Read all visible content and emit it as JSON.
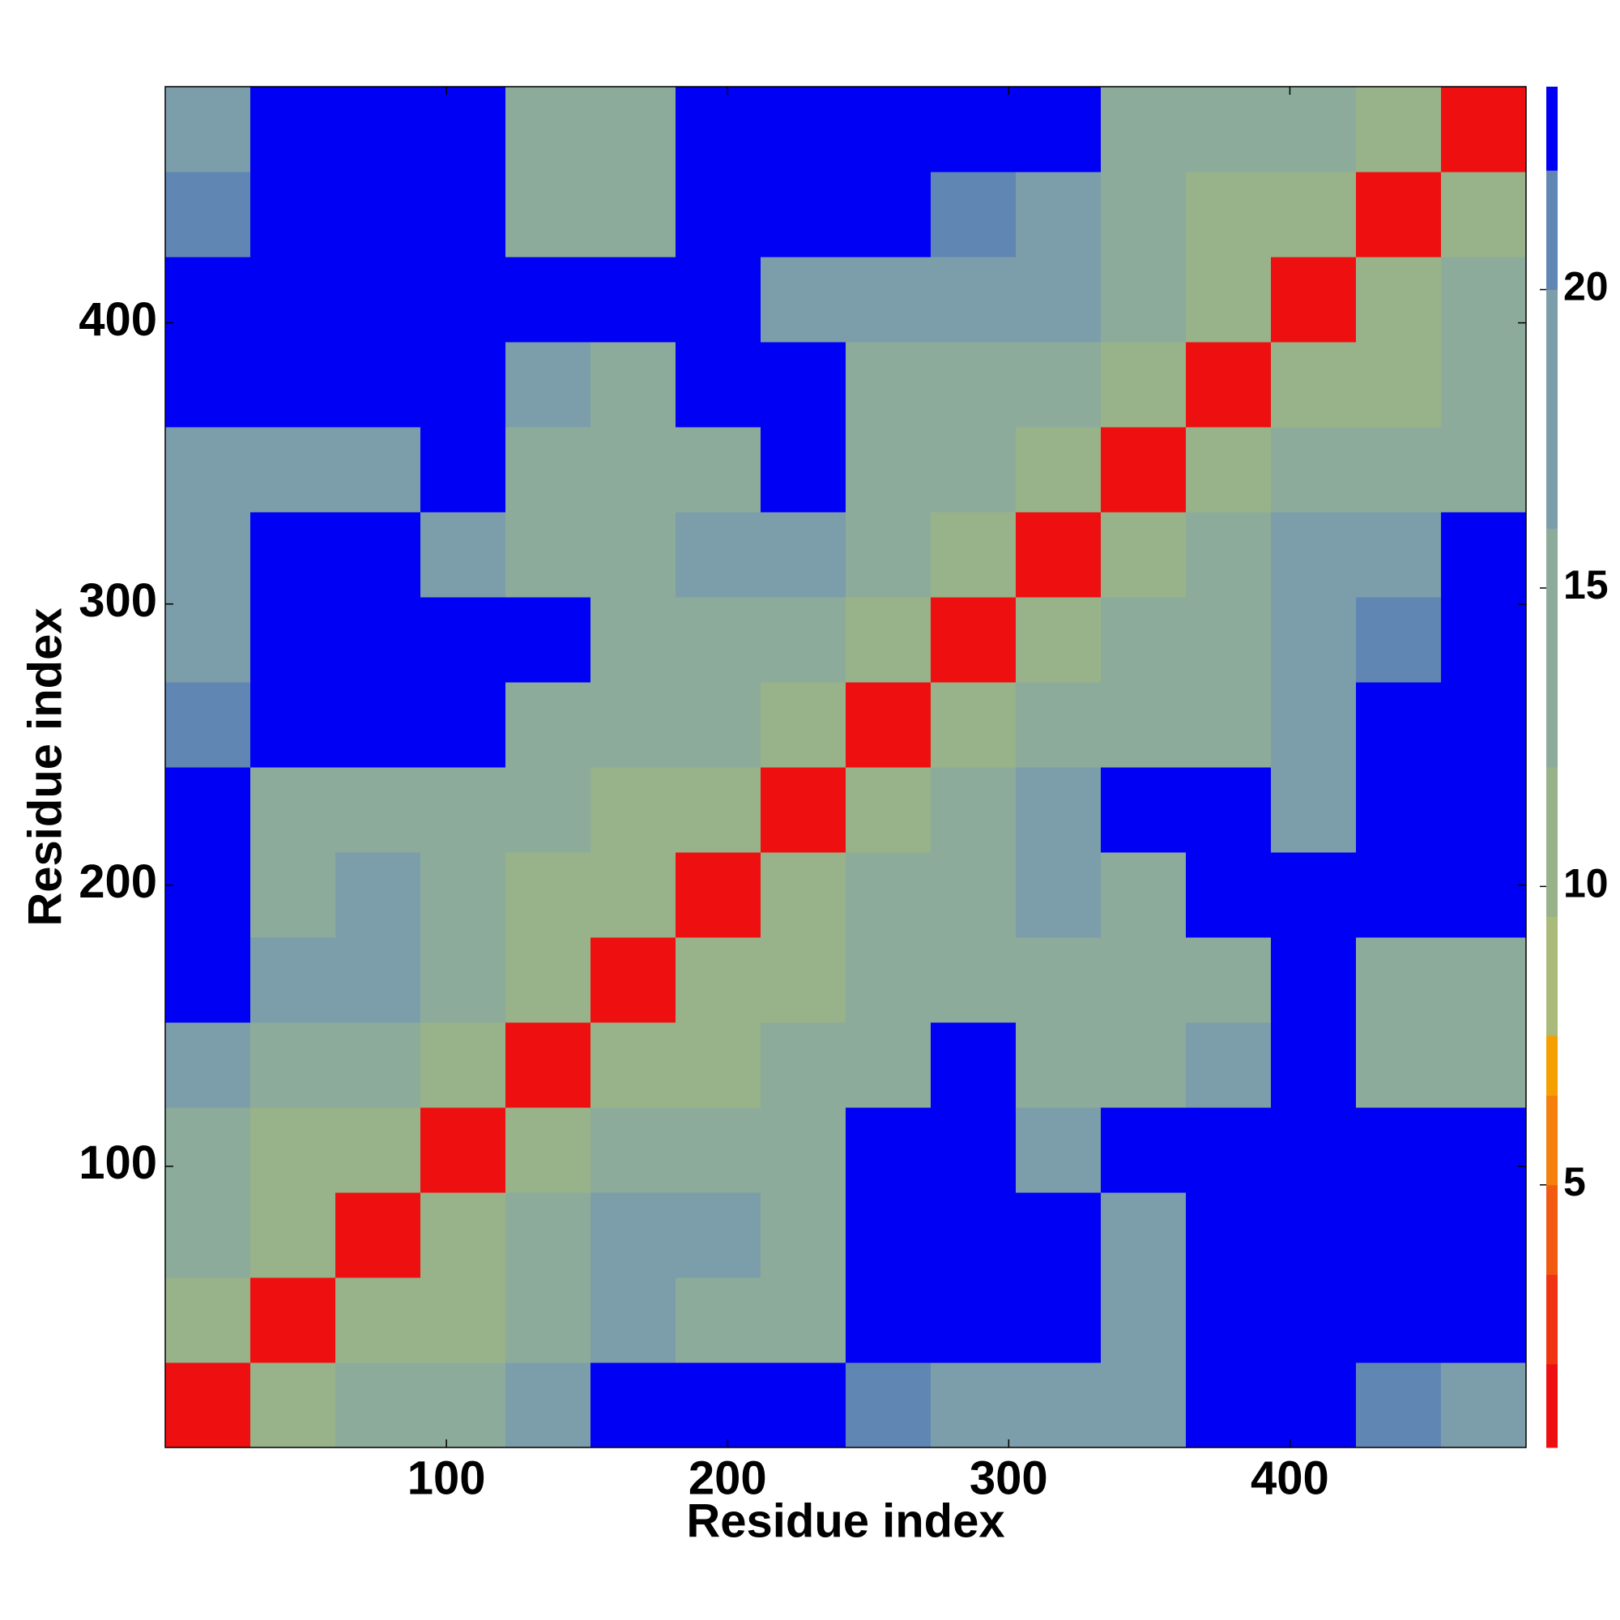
{
  "chart_data": {
    "type": "heatmap",
    "xlabel": "Residue index",
    "ylabel": "Residue index",
    "xlim": [
      0,
      484
    ],
    "ylim": [
      0,
      484
    ],
    "xticks": [
      100,
      200,
      300,
      400
    ],
    "yticks": [
      100,
      200,
      300,
      400
    ],
    "xbins": [
      0,
      30.25,
      60.5,
      90.75,
      121,
      151.25,
      181.5,
      211.75,
      242,
      272.25,
      302.5,
      332.75,
      363,
      393.25,
      423.5,
      453.75,
      484
    ],
    "ybins": [
      0,
      30.25,
      60.5,
      90.75,
      121,
      151.25,
      181.5,
      211.75,
      242,
      272.25,
      302.5,
      332.75,
      363,
      393.25,
      423.5,
      453.75,
      484
    ],
    "z": [
      [
        2,
        11,
        13,
        15,
        18,
        23,
        23,
        23,
        21,
        20,
        19,
        17,
        23,
        23,
        21,
        20
      ],
      [
        11,
        2,
        11,
        12,
        14,
        19,
        16,
        15,
        23,
        23,
        23,
        18,
        23,
        23,
        23,
        23
      ],
      [
        13,
        11,
        2,
        11,
        13,
        17,
        19,
        16,
        23,
        23,
        23,
        19,
        23,
        23,
        23,
        23
      ],
      [
        15,
        12,
        11,
        2,
        11,
        13,
        14,
        13,
        23,
        23,
        17,
        23,
        23,
        23,
        23,
        23
      ],
      [
        18,
        14,
        13,
        11,
        2,
        11,
        12,
        13,
        14,
        23,
        13,
        13,
        18,
        23,
        14,
        13
      ],
      [
        23,
        19,
        17,
        13,
        11,
        2,
        11,
        12,
        13,
        15,
        14,
        15,
        16,
        23,
        13,
        14
      ],
      [
        23,
        16,
        19,
        14,
        12,
        11,
        2,
        11,
        13,
        16,
        19,
        16,
        23,
        23,
        23,
        23
      ],
      [
        23,
        15,
        16,
        13,
        13,
        12,
        11,
        2,
        11,
        14,
        17,
        23,
        23,
        20,
        23,
        23
      ],
      [
        21,
        23,
        23,
        23,
        14,
        13,
        13,
        11,
        2,
        11,
        15,
        14,
        15,
        19,
        23,
        23
      ],
      [
        20,
        23,
        23,
        23,
        23,
        15,
        16,
        14,
        11,
        2,
        11,
        13,
        16,
        20,
        21,
        23
      ],
      [
        19,
        23,
        23,
        17,
        13,
        14,
        19,
        17,
        15,
        11,
        2,
        11,
        14,
        18,
        20,
        23
      ],
      [
        17,
        18,
        19,
        23,
        13,
        15,
        16,
        23,
        14,
        13,
        11,
        2,
        11,
        13,
        14,
        16
      ],
      [
        23,
        23,
        23,
        23,
        18,
        16,
        23,
        23,
        15,
        16,
        14,
        11,
        2,
        11,
        12,
        15
      ],
      [
        23,
        23,
        23,
        23,
        23,
        23,
        23,
        20,
        19,
        20,
        18,
        13,
        11,
        2,
        11,
        13
      ],
      [
        21,
        23,
        23,
        23,
        14,
        13,
        23,
        23,
        23,
        21,
        20,
        14,
        12,
        11,
        2,
        11
      ],
      [
        20,
        23,
        23,
        23,
        13,
        14,
        23,
        23,
        23,
        23,
        23,
        16,
        15,
        13,
        11,
        2
      ]
    ],
    "zlim": [
      0.6,
      23.4
    ],
    "zticks": [
      5,
      10,
      15,
      20
    ],
    "color_levels": [
      {
        "max": 2,
        "color": "#ee1010"
      },
      {
        "max": 3.5,
        "color": "#f03412"
      },
      {
        "max": 5,
        "color": "#f25a12"
      },
      {
        "max": 6.5,
        "color": "#f5800c"
      },
      {
        "max": 7.5,
        "color": "#f5a000"
      },
      {
        "max": 9.5,
        "color": "#a9ba7a"
      },
      {
        "max": 12,
        "color": "#98b38a"
      },
      {
        "max": 16,
        "color": "#8cab9a"
      },
      {
        "max": 20,
        "color": "#7c9eaa"
      },
      {
        "max": 22,
        "color": "#6086b4"
      },
      {
        "max": 23.4,
        "color": "#0000f5"
      }
    ]
  }
}
